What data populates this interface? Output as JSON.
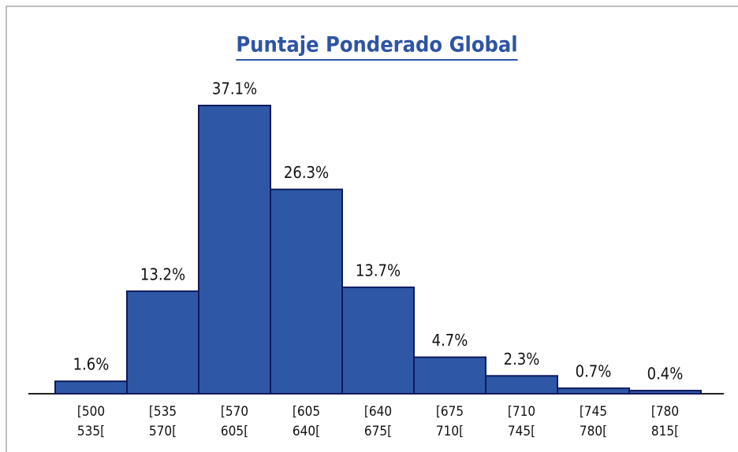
{
  "chart_data": {
    "type": "bar",
    "title": "Puntaje Ponderado Global",
    "categories": [
      [
        "[500",
        "535["
      ],
      [
        "[535",
        "570["
      ],
      [
        "[570",
        "605["
      ],
      [
        "[605",
        "640["
      ],
      [
        "[640",
        "675["
      ],
      [
        "[675",
        "710["
      ],
      [
        "[710",
        "745["
      ],
      [
        "[745",
        "780["
      ],
      [
        "[780",
        "815["
      ]
    ],
    "values": [
      1.6,
      13.2,
      37.1,
      26.3,
      13.7,
      4.7,
      2.3,
      0.7,
      0.4
    ],
    "value_labels": [
      "1.6%",
      "13.2%",
      "37.1%",
      "26.3%",
      "13.7%",
      "4.7%",
      "2.3%",
      "0.7%",
      "0.4%"
    ],
    "color": "#2e58a6"
  }
}
